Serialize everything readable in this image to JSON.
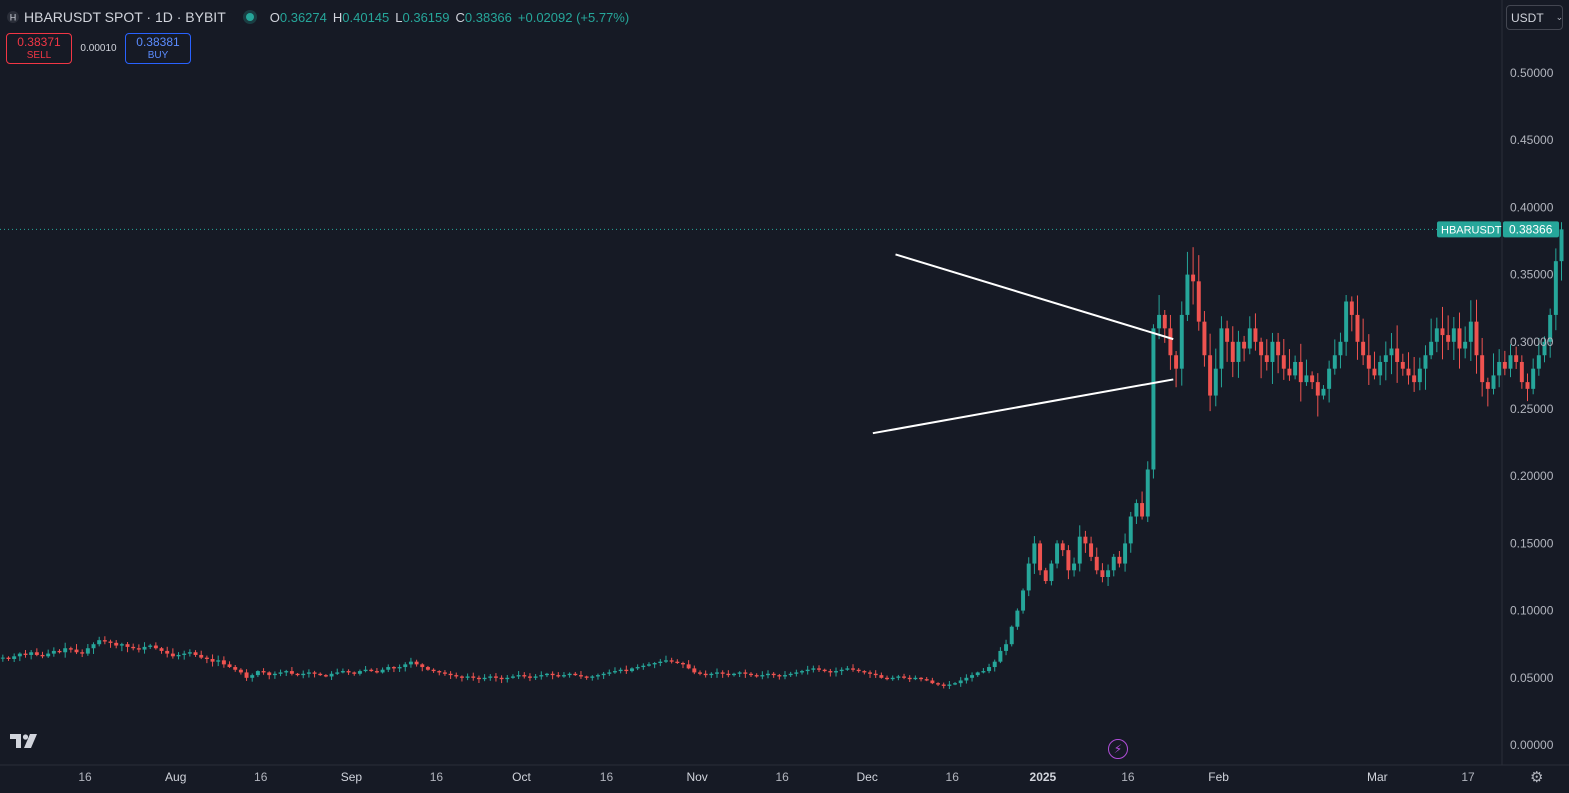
{
  "header": {
    "symbol": "HBARUSDT SPOT · 1D · BYBIT",
    "open_label": "O",
    "open": "0.36274",
    "high_label": "H",
    "high": "0.40145",
    "low_label": "L",
    "low": "0.36159",
    "close_label": "C",
    "close": "0.38366",
    "change": "+0.02092 (+5.77%)",
    "status_icon": "market-open-dot"
  },
  "trade": {
    "sell_price": "0.38371",
    "sell_label": "SELL",
    "spread": "0.00010",
    "buy_price": "0.38381",
    "buy_label": "BUY"
  },
  "currency": {
    "label": "USDT",
    "icon": "chevron-down-icon"
  },
  "colors": {
    "background": "#161a25",
    "up": "#26a69a",
    "down": "#ef5350",
    "trendline": "#ffffff",
    "sell": "#f23645",
    "buy": "#2962ff",
    "axis_text": "#b2b5be"
  },
  "chart_data": {
    "type": "candlestick",
    "symbol": "HBARUSDT",
    "last_price": 0.38366,
    "last_price_label": "0.38366",
    "price_tag_label": "HBARUSDT",
    "ylim": [
      0,
      0.54
    ],
    "y_ticks": [
      "0.50000",
      "0.45000",
      "0.40000",
      "0.35000",
      "0.30000",
      "0.25000",
      "0.20000",
      "0.15000",
      "0.10000",
      "0.05000",
      "0.00000"
    ],
    "y_tick_values": [
      0.5,
      0.45,
      0.4,
      0.35,
      0.3,
      0.25,
      0.2,
      0.15,
      0.1,
      0.05,
      0
    ],
    "x_ticks": [
      "16",
      "Aug",
      "16",
      "Sep",
      "16",
      "Oct",
      "16",
      "Nov",
      "16",
      "Dec",
      "16",
      "2025",
      "16",
      "Feb",
      "Mar",
      "17"
    ],
    "x_tick_dates": [
      "2024-07-16",
      "2024-08-01",
      "2024-08-16",
      "2024-09-01",
      "2024-09-16",
      "2024-10-01",
      "2024-10-16",
      "2024-11-01",
      "2024-11-16",
      "2024-12-01",
      "2024-12-16",
      "2025-01-01",
      "2025-01-16",
      "2025-02-01",
      "2025-03-01",
      "2025-03-17"
    ],
    "x_start": "2024-07-01",
    "x_end": "2025-03-23",
    "grid": false,
    "trendlines": [
      {
        "name": "upper-resistance",
        "from": [
          "2024-12-06",
          0.365
        ],
        "to": [
          "2025-01-24",
          0.302
        ]
      },
      {
        "name": "lower-support",
        "from": [
          "2024-12-02",
          0.232
        ],
        "to": [
          "2025-01-24",
          0.272
        ]
      }
    ],
    "closes": [
      0.065,
      0.064,
      0.066,
      0.068,
      0.067,
      0.069,
      0.067,
      0.066,
      0.068,
      0.07,
      0.069,
      0.072,
      0.071,
      0.069,
      0.068,
      0.072,
      0.075,
      0.078,
      0.077,
      0.076,
      0.074,
      0.075,
      0.073,
      0.072,
      0.071,
      0.073,
      0.074,
      0.072,
      0.07,
      0.068,
      0.066,
      0.067,
      0.068,
      0.069,
      0.067,
      0.065,
      0.064,
      0.062,
      0.063,
      0.06,
      0.058,
      0.056,
      0.054,
      0.05,
      0.052,
      0.055,
      0.054,
      0.052,
      0.053,
      0.054,
      0.055,
      0.053,
      0.052,
      0.053,
      0.054,
      0.053,
      0.052,
      0.051,
      0.053,
      0.054,
      0.055,
      0.054,
      0.053,
      0.055,
      0.056,
      0.055,
      0.054,
      0.056,
      0.058,
      0.057,
      0.058,
      0.06,
      0.062,
      0.06,
      0.058,
      0.056,
      0.055,
      0.054,
      0.053,
      0.052,
      0.051,
      0.05,
      0.051,
      0.05,
      0.049,
      0.05,
      0.051,
      0.05,
      0.049,
      0.05,
      0.051,
      0.052,
      0.051,
      0.05,
      0.051,
      0.052,
      0.053,
      0.052,
      0.051,
      0.052,
      0.053,
      0.052,
      0.051,
      0.05,
      0.051,
      0.052,
      0.053,
      0.054,
      0.055,
      0.056,
      0.055,
      0.057,
      0.058,
      0.059,
      0.06,
      0.061,
      0.062,
      0.063,
      0.062,
      0.061,
      0.06,
      0.057,
      0.054,
      0.053,
      0.052,
      0.053,
      0.054,
      0.053,
      0.052,
      0.053,
      0.054,
      0.053,
      0.052,
      0.051,
      0.052,
      0.053,
      0.052,
      0.051,
      0.052,
      0.053,
      0.054,
      0.055,
      0.056,
      0.057,
      0.056,
      0.055,
      0.054,
      0.055,
      0.056,
      0.057,
      0.056,
      0.055,
      0.054,
      0.053,
      0.052,
      0.05,
      0.049,
      0.05,
      0.051,
      0.05,
      0.049,
      0.05,
      0.049,
      0.048,
      0.046,
      0.045,
      0.044,
      0.045,
      0.046,
      0.048,
      0.05,
      0.052,
      0.054,
      0.055,
      0.058,
      0.062,
      0.07,
      0.075,
      0.088,
      0.1,
      0.115,
      0.135,
      0.15,
      0.13,
      0.122,
      0.135,
      0.15,
      0.145,
      0.13,
      0.135,
      0.155,
      0.15,
      0.14,
      0.13,
      0.125,
      0.13,
      0.14,
      0.135,
      0.15,
      0.17,
      0.18,
      0.17,
      0.205,
      0.31,
      0.32,
      0.31,
      0.29,
      0.28,
      0.32,
      0.35,
      0.345,
      0.315,
      0.29,
      0.26,
      0.28,
      0.31,
      0.3,
      0.285,
      0.3,
      0.295,
      0.31,
      0.3,
      0.29,
      0.285,
      0.3,
      0.29,
      0.28,
      0.275,
      0.285,
      0.27,
      0.275,
      0.27,
      0.26,
      0.265,
      0.28,
      0.29,
      0.3,
      0.33,
      0.32,
      0.3,
      0.29,
      0.28,
      0.275,
      0.285,
      0.29,
      0.295,
      0.285,
      0.28,
      0.275,
      0.27,
      0.28,
      0.29,
      0.3,
      0.31,
      0.305,
      0.3,
      0.31,
      0.295,
      0.3,
      0.315,
      0.29,
      0.27,
      0.265,
      0.275,
      0.285,
      0.28,
      0.29,
      0.285,
      0.27,
      0.265,
      0.28,
      0.29,
      0.3,
      0.32,
      0.36,
      0.38366
    ]
  }
}
